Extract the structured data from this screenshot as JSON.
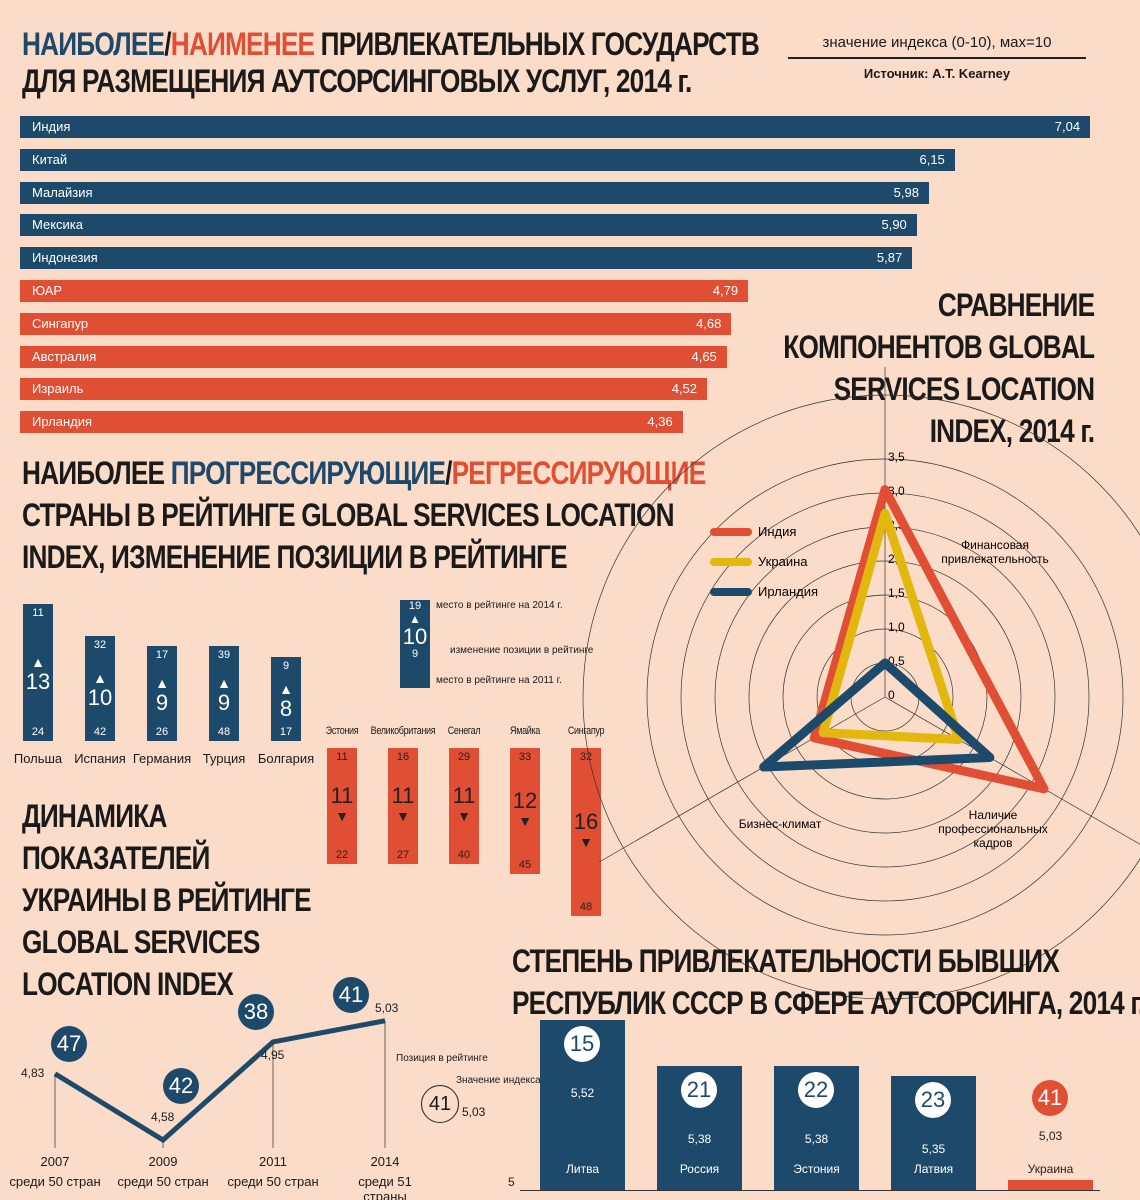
{
  "colors": {
    "blue": "#1d4a6b",
    "red": "#e04e33",
    "yellow": "#e3b80e",
    "background": "#fbdcc8"
  },
  "title1": {
    "part1": "НАИБОЛЕЕ",
    "slash": "/",
    "part2": "НАИМЕНЕЕ",
    "part3": " ПРИВЛЕКАТЕЛЬНЫХ ГОСУДАРСТВ",
    "line2": "ДЛЯ РАЗМЕЩЕНИЯ АУТСОРСИНГОВЫХ УСЛУГ, 2014 г."
  },
  "legend1": {
    "note": "значение индекса (0-10), мах=10",
    "source": "Источник: A.T. Kearney"
  },
  "chart_data": [
    {
      "type": "bar",
      "orientation": "horizontal",
      "categories": [
        "Индия",
        "Китай",
        "Малайзия",
        "Мексика",
        "Индонезия",
        "ЮАР",
        "Сингапур",
        "Австралия",
        "Израиль",
        "Ирландия"
      ],
      "values": [
        7.04,
        6.15,
        5.98,
        5.9,
        5.87,
        4.79,
        4.68,
        4.65,
        4.52,
        4.36
      ],
      "value_labels": [
        "7,04",
        "6,15",
        "5,98",
        "5,90",
        "5,87",
        "4,79",
        "4,68",
        "4,65",
        "4,52",
        "4,36"
      ],
      "groups": [
        "most",
        "most",
        "most",
        "most",
        "most",
        "least",
        "least",
        "least",
        "least",
        "least"
      ]
    },
    {
      "type": "bar",
      "title": "progress",
      "categories": [
        "Польша",
        "Испания",
        "Германия",
        "Турция",
        "Болгария"
      ],
      "rank_2014": [
        11,
        32,
        17,
        39,
        9
      ],
      "rank_2011": [
        24,
        42,
        26,
        48,
        17
      ],
      "change": [
        13,
        10,
        9,
        9,
        8
      ]
    },
    {
      "type": "bar",
      "title": "regress",
      "categories": [
        "Эстония",
        "Великобритания",
        "Сенегал",
        "Ямайка",
        "Сингапур"
      ],
      "rank_2011": [
        11,
        16,
        29,
        33,
        32
      ],
      "rank_2014": [
        22,
        27,
        40,
        45,
        48
      ],
      "change": [
        11,
        11,
        11,
        12,
        16
      ]
    },
    {
      "type": "radar",
      "axes": [
        "Финансовая привлекательность",
        "Наличие профессиональных кадров",
        "Бизнес-климат"
      ],
      "ticks": [
        "0",
        "0,5",
        "1,0",
        "1,5",
        "2,0",
        "2,5",
        "3,0",
        "3,5"
      ],
      "range": [
        0,
        3.5
      ],
      "series": [
        {
          "name": "Индия",
          "color": "#e04e33",
          "values": [
            3.05,
            2.7,
            1.2
          ]
        },
        {
          "name": "Украина",
          "color": "#e3b80e",
          "values": [
            2.7,
            1.25,
            1.05
          ]
        },
        {
          "name": "Ирландия",
          "color": "#1d4a6b",
          "values": [
            0.5,
            1.78,
            2.06
          ]
        }
      ]
    },
    {
      "type": "line",
      "categories": [
        "2007",
        "2009",
        "2011",
        "2014"
      ],
      "sublabels": [
        "среди 50 стран",
        "среди 50 стран",
        "среди 50 стран",
        "среди 51 страны"
      ],
      "values": [
        4.83,
        4.58,
        4.95,
        5.03
      ],
      "value_labels": [
        "4,83",
        "4,58",
        "4,95",
        "5,03"
      ],
      "ranks": [
        47,
        42,
        38,
        41
      ]
    },
    {
      "type": "bar",
      "categories": [
        "Литва",
        "Россия",
        "Эстония",
        "Латвия",
        "Украина"
      ],
      "values": [
        5.52,
        5.38,
        5.38,
        5.35,
        5.03
      ],
      "value_labels": [
        "5,52",
        "5,38",
        "5,38",
        "5,35",
        "5,03"
      ],
      "ranks": [
        15,
        21,
        22,
        23,
        41
      ],
      "baseline_label": "5"
    }
  ],
  "title2": {
    "part1": "НАИБОЛЕЕ ",
    "part2": "ПРОГРЕССИРУЮЩИЕ",
    "slash": "/",
    "part3": "РЕГРЕССИРУЮЩИЕ",
    "line2": "СТРАНЫ В РЕЙТИНГЕ  GLOBAL SERVICES LOCATION",
    "line3": "INDEX, ИЗМЕНЕНИЕ ПОЗИЦИИ В РЕЙТИНГЕ"
  },
  "key2": {
    "top": "19",
    "change": "10",
    "bottom": "9",
    "top_label": "место в рейтинге на 2014 г.",
    "change_label": "изменение позиции в рейтинге",
    "bottom_label": "место в рейтинге на 2011 г."
  },
  "title3": [
    "СРАВНЕНИЕ",
    "КОМПОНЕНТОВ  GLOBAL",
    "SERVICES LOCATION",
    "INDEX, 2014 г."
  ],
  "title4": [
    "ДИНАМИКА",
    "ПОКАЗАТЕЛЕЙ",
    "УКРАИНЫ В РЕЙТИНГЕ",
    "GLOBAL SERVICES",
    "LOCATION INDEX"
  ],
  "key4": {
    "rank_label": "Позиция в рейтинге",
    "value_label": "Значение индекса",
    "rank": "41",
    "value": "5,03"
  },
  "title5": [
    "СТЕПЕНЬ ПРИВЛЕКАТЕЛЬНОСТИ БЫВШИХ",
    "РЕСПУБЛИК СССР В СФЕРЕ АУТСОРСИНГА, 2014 г."
  ]
}
